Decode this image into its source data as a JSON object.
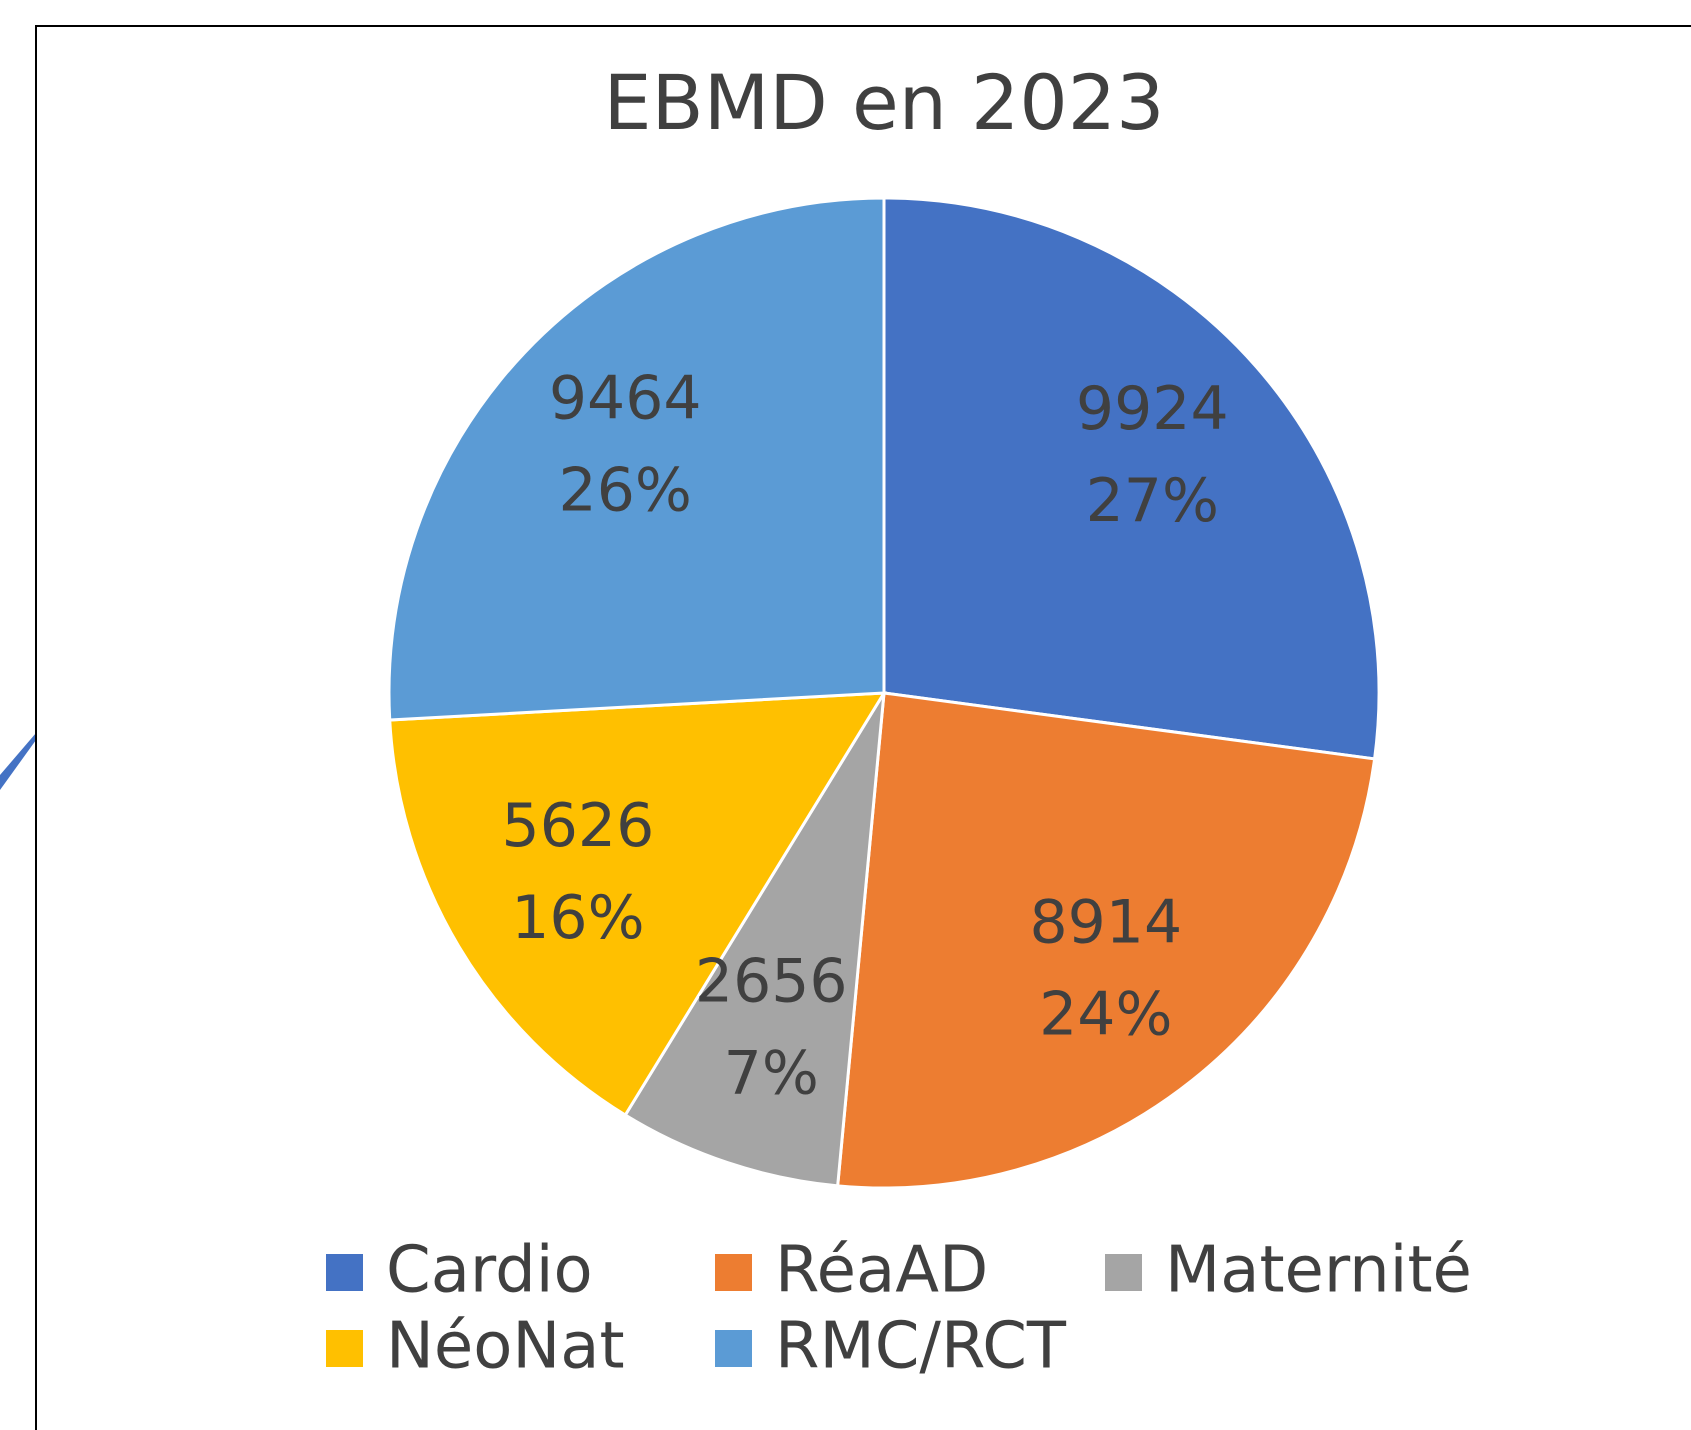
{
  "chart_data": {
    "type": "pie",
    "title": "EBMD en 2023",
    "categories": [
      "Cardio",
      "RéaAD",
      "Maternité",
      "NéoNat",
      "RMC/RCT"
    ],
    "values": [
      9924,
      8914,
      2656,
      5626,
      9464
    ],
    "percent_values": [
      27,
      24,
      7,
      16,
      26
    ],
    "percent_labels": [
      "27%",
      "24%",
      "7%",
      "16%",
      "26%"
    ],
    "colors": [
      "#4472c4",
      "#ed7d31",
      "#a5a5a5",
      "#ffc000",
      "#5b9bd5"
    ],
    "legend": "bottom"
  }
}
